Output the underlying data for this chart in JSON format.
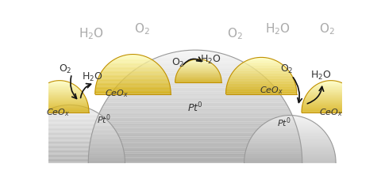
{
  "bg_color": "#ffffff",
  "text_color": "#333333",
  "gray_label_color": "#aaaaaa",
  "pt_light": "#f2f2f2",
  "pt_dark": "#b0b0b0",
  "pt_edge": "#999999",
  "ceo_light": "#ffff99",
  "ceo_dark": "#e8c800",
  "ceo_edge": "#c8a800",
  "arrow_color": "#111111"
}
